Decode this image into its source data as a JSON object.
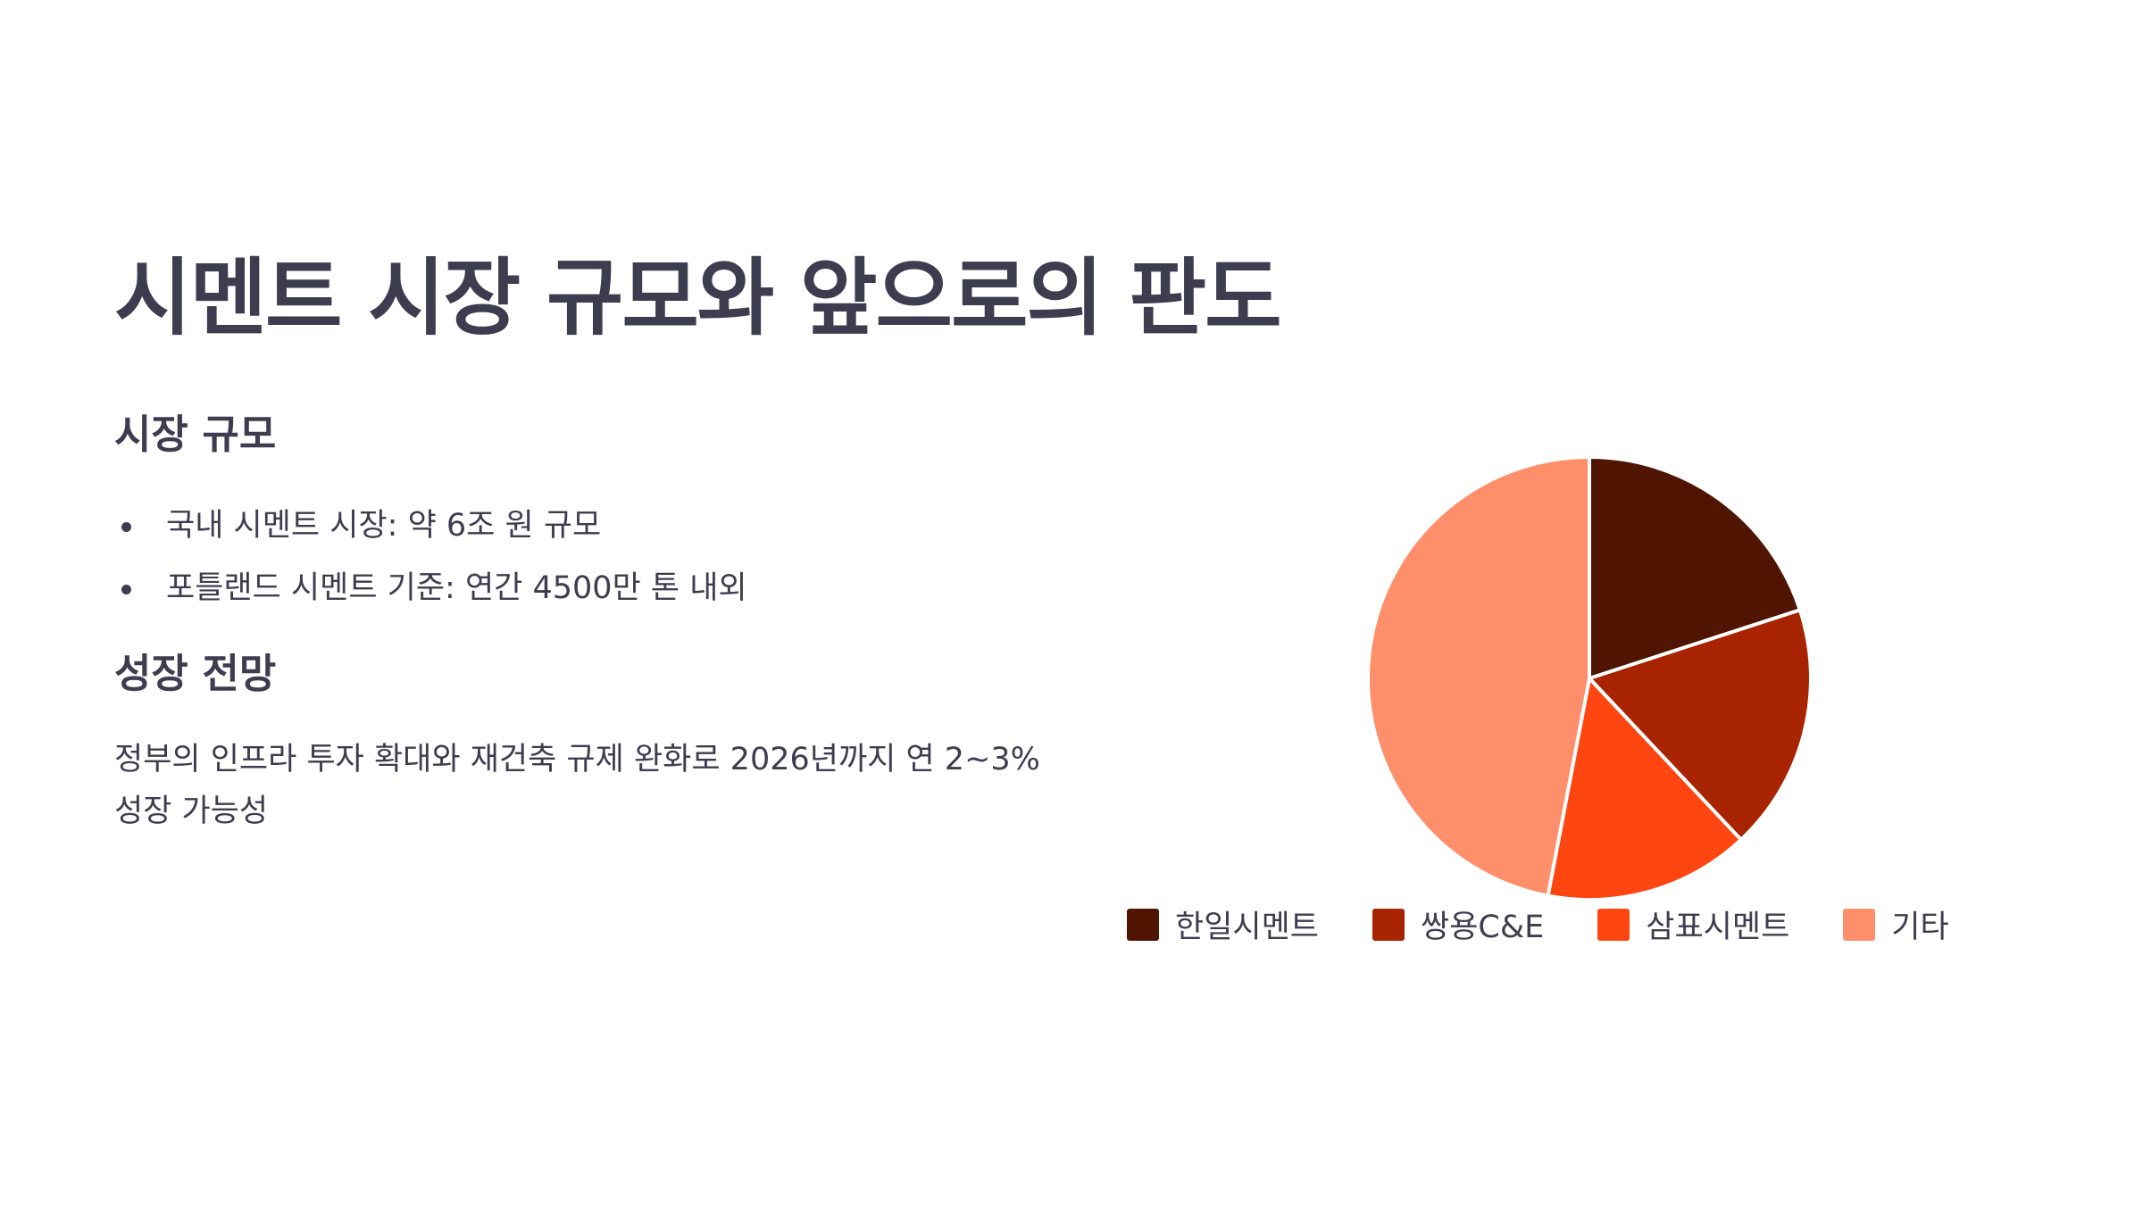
{
  "slide": {
    "title": "시멘트 시장 규모와 앞으로의 판도"
  },
  "market_size": {
    "heading": "시장 규모",
    "bullets": [
      "국내 시멘트 시장: 약 6조 원 규모",
      "포틀랜드 시멘트 기준: 연간 4500만 톤 내외"
    ]
  },
  "growth": {
    "heading": "성장 전망",
    "paragraph": "정부의 인프라 투자 확대와 재건축 규제 완화로 2026년까지 연 2~3% 성장 가능성"
  },
  "chart_data": {
    "type": "pie",
    "categories": [
      "한일시멘트",
      "쌍용C&E",
      "삼표시멘트",
      "기타"
    ],
    "values": [
      20,
      18,
      15,
      47
    ],
    "colors": [
      "#501500",
      "#a82400",
      "#ff4510",
      "#ff8f6a"
    ],
    "legend_position": "bottom",
    "start_angle": "12 o'clock",
    "direction": "clockwise"
  }
}
